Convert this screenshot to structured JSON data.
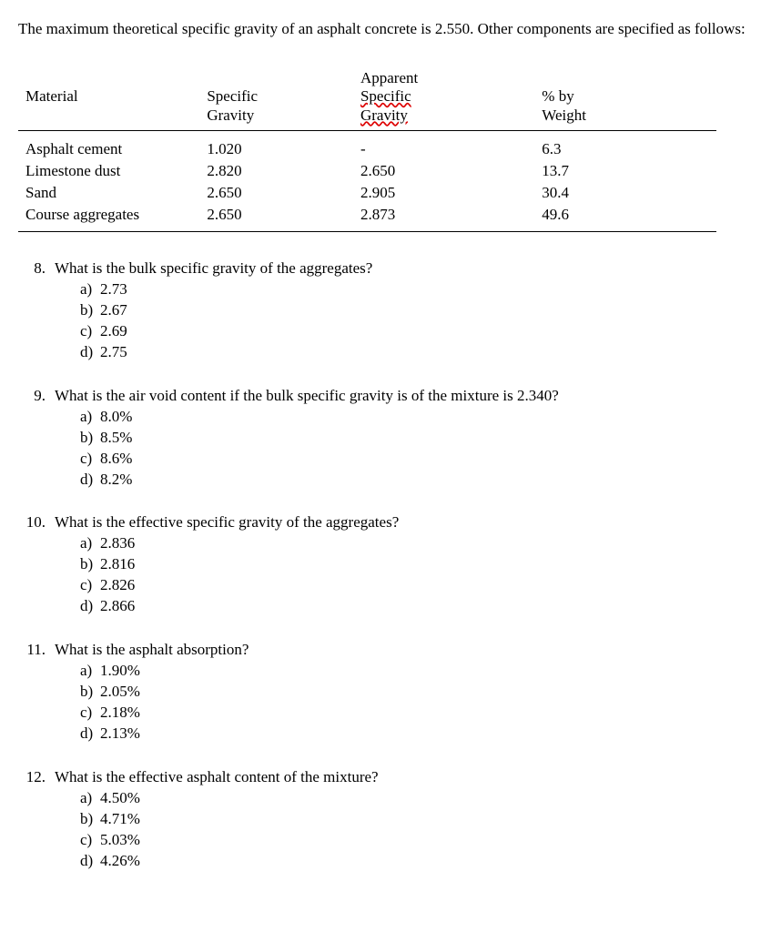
{
  "intro": "The maximum theoretical specific gravity of an asphalt concrete is 2.550. Other components are specified as follows:",
  "table": {
    "headers": {
      "material": "Material",
      "sg1": "Specific",
      "sg2": "Gravity",
      "asg0": "Apparent",
      "asg1": "Specific",
      "asg2": "Gravity",
      "wt1": "% by",
      "wt2": "Weight"
    },
    "rows": [
      {
        "material": "Asphalt cement",
        "sg": "1.020",
        "asg": "-",
        "wt": "6.3"
      },
      {
        "material": "Limestone dust",
        "sg": "2.820",
        "asg": "2.650",
        "wt": "13.7"
      },
      {
        "material": "Sand",
        "sg": "2.650",
        "asg": "2.905",
        "wt": "30.4"
      },
      {
        "material": "Course aggregates",
        "sg": "2.650",
        "asg": "2.873",
        "wt": "49.6"
      }
    ]
  },
  "questions": [
    {
      "num": "8.",
      "text": "What is the bulk specific gravity of the aggregates?",
      "options": [
        {
          "label": "a)",
          "text": "2.73"
        },
        {
          "label": "b)",
          "text": "2.67"
        },
        {
          "label": "c)",
          "text": "2.69"
        },
        {
          "label": "d)",
          "text": "2.75"
        }
      ]
    },
    {
      "num": "9.",
      "text": "What is the air void content if the bulk specific gravity is of the mixture is 2.340?",
      "options": [
        {
          "label": "a)",
          "text": "8.0%"
        },
        {
          "label": "b)",
          "text": "8.5%"
        },
        {
          "label": "c)",
          "text": "8.6%"
        },
        {
          "label": "d)",
          "text": "8.2%"
        }
      ]
    },
    {
      "num": "10.",
      "text": "What is the effective specific gravity of the aggregates?",
      "options": [
        {
          "label": "a)",
          "text": "2.836"
        },
        {
          "label": "b)",
          "text": "2.816"
        },
        {
          "label": "c)",
          "text": "2.826"
        },
        {
          "label": "d)",
          "text": "2.866"
        }
      ]
    },
    {
      "num": "11.",
      "text": "What is the asphalt absorption?",
      "options": [
        {
          "label": "a)",
          "text": "1.90%"
        },
        {
          "label": "b)",
          "text": "2.05%"
        },
        {
          "label": "c)",
          "text": "2.18%"
        },
        {
          "label": "d)",
          "text": "2.13%"
        }
      ]
    },
    {
      "num": "12.",
      "text": "What is the effective asphalt content of the mixture?",
      "options": [
        {
          "label": "a)",
          "text": "4.50%"
        },
        {
          "label": "b)",
          "text": "4.71%"
        },
        {
          "label": "c)",
          "text": "5.03%"
        },
        {
          "label": "d)",
          "text": "4.26%"
        }
      ]
    }
  ],
  "style": {
    "font_family": "Times New Roman",
    "body_fontsize_pt": 13,
    "text_color": "#000000",
    "background_color": "#ffffff",
    "spellcheck_underline_color": "#d00000",
    "table_border_color": "#000000"
  }
}
